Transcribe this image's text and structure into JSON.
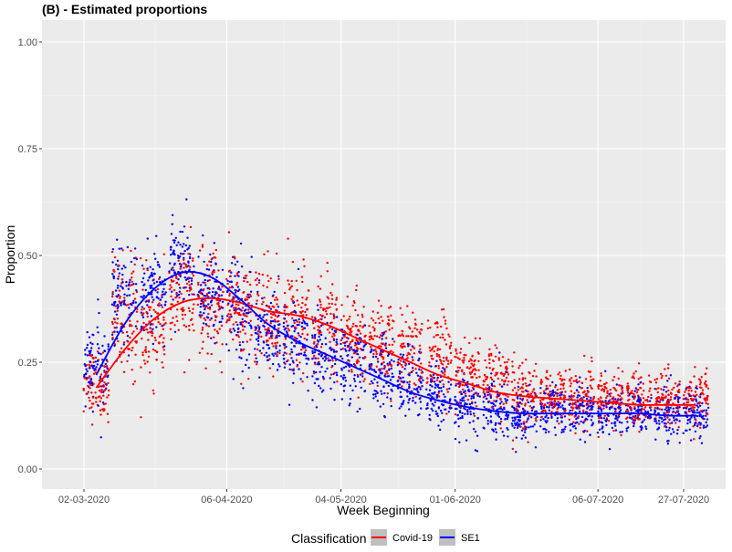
{
  "chart_data": {
    "type": "scatter",
    "title": "(B) - Estimated proportions",
    "xlabel": "Week Beginning",
    "ylabel": "Proportion",
    "ylim": [
      0,
      1
    ],
    "xlim": [
      "2020-02-24",
      "2020-08-04"
    ],
    "x_ticks": [
      "02-03-2020",
      "06-04-2020",
      "04-05-2020",
      "01-06-2020",
      "06-07-2020",
      "27-07-2020"
    ],
    "y_ticks": [
      "0.00",
      "0.25",
      "0.50",
      "0.75",
      "1.00"
    ],
    "grid": true,
    "legend": {
      "title": "Classification",
      "position": "bottom"
    },
    "series": [
      {
        "name": "Covid-19",
        "color": "#ff0000",
        "x": [
          "2020-03-02",
          "2020-03-09",
          "2020-03-16",
          "2020-03-23",
          "2020-03-30",
          "2020-04-06",
          "2020-04-13",
          "2020-04-20",
          "2020-04-27",
          "2020-05-04",
          "2020-05-11",
          "2020-05-18",
          "2020-05-25",
          "2020-06-01",
          "2020-06-08",
          "2020-06-15",
          "2020-06-22",
          "2020-06-29",
          "2020-07-06",
          "2020-07-13",
          "2020-07-20",
          "2020-07-27"
        ],
        "y": [
          0.2,
          0.36,
          0.33,
          0.4,
          0.38,
          0.37,
          0.36,
          0.35,
          0.33,
          0.31,
          0.29,
          0.27,
          0.26,
          0.22,
          0.2,
          0.18,
          0.17,
          0.17,
          0.16,
          0.16,
          0.16,
          0.16
        ],
        "spread": [
          0.04,
          0.07,
          0.06,
          0.06,
          0.06,
          0.06,
          0.06,
          0.06,
          0.06,
          0.05,
          0.05,
          0.05,
          0.05,
          0.04,
          0.04,
          0.04,
          0.03,
          0.035,
          0.035,
          0.035,
          0.035,
          0.03
        ],
        "smooth": [
          0.19,
          0.28,
          0.35,
          0.39,
          0.4,
          0.39,
          0.37,
          0.36,
          0.34,
          0.31,
          0.28,
          0.25,
          0.22,
          0.2,
          0.18,
          0.17,
          0.165,
          0.16,
          0.155,
          0.15,
          0.15,
          0.15
        ]
      },
      {
        "name": "SE1",
        "color": "#0000ff",
        "x": [
          "2020-03-02",
          "2020-03-09",
          "2020-03-16",
          "2020-03-23",
          "2020-03-30",
          "2020-04-06",
          "2020-04-13",
          "2020-04-20",
          "2020-04-27",
          "2020-05-04",
          "2020-05-11",
          "2020-05-18",
          "2020-05-25",
          "2020-06-01",
          "2020-06-08",
          "2020-06-15",
          "2020-06-22",
          "2020-06-29",
          "2020-07-06",
          "2020-07-13",
          "2020-07-20",
          "2020-07-27"
        ],
        "y": [
          0.24,
          0.41,
          0.42,
          0.49,
          0.41,
          0.37,
          0.32,
          0.29,
          0.27,
          0.25,
          0.22,
          0.2,
          0.17,
          0.15,
          0.14,
          0.12,
          0.14,
          0.14,
          0.13,
          0.13,
          0.13,
          0.13
        ],
        "spread": [
          0.05,
          0.06,
          0.05,
          0.05,
          0.05,
          0.06,
          0.05,
          0.05,
          0.05,
          0.05,
          0.04,
          0.04,
          0.04,
          0.035,
          0.035,
          0.03,
          0.03,
          0.03,
          0.03,
          0.03,
          0.03,
          0.03
        ],
        "smooth": [
          0.22,
          0.34,
          0.42,
          0.46,
          0.45,
          0.4,
          0.34,
          0.3,
          0.27,
          0.24,
          0.21,
          0.18,
          0.16,
          0.145,
          0.135,
          0.13,
          0.13,
          0.13,
          0.13,
          0.13,
          0.125,
          0.125
        ]
      }
    ]
  }
}
